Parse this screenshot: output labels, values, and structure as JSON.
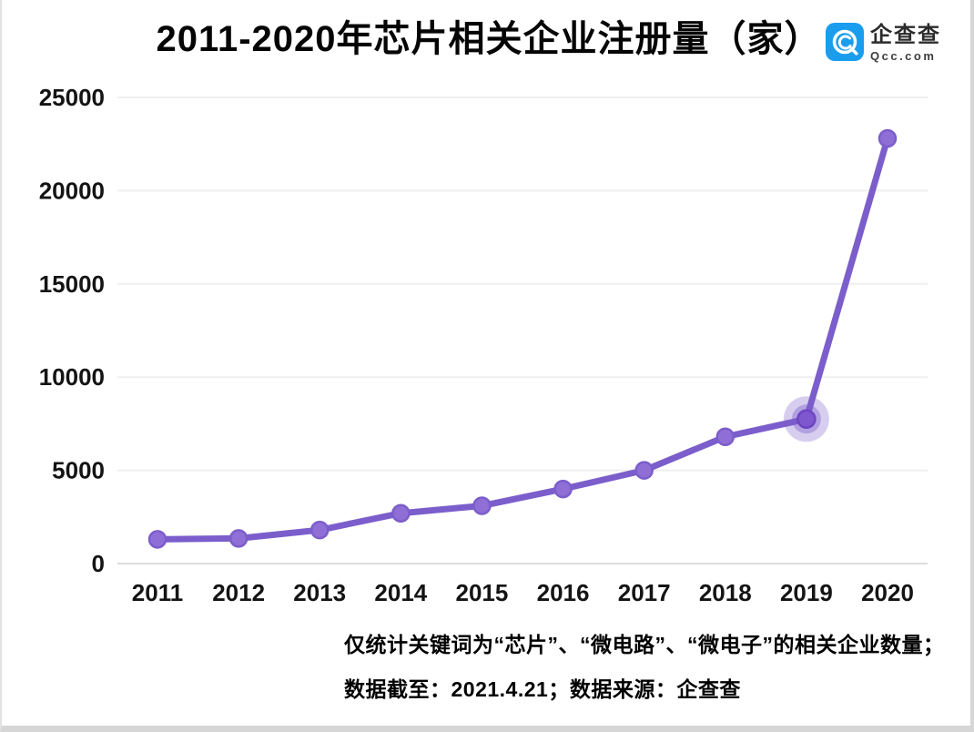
{
  "header": {
    "title": "2011-2020年芯片相关企业注册量（家）"
  },
  "logo": {
    "name": "企查查",
    "domain": "Qcc.com",
    "icon": "qcc-logo-icon",
    "brand_color": "#1B9DEF"
  },
  "chart_data": {
    "type": "line",
    "title": "2011-2020年芯片相关企业注册量（家）",
    "categories": [
      "2011",
      "2012",
      "2013",
      "2014",
      "2015",
      "2016",
      "2017",
      "2018",
      "2019",
      "2020"
    ],
    "values": [
      1300,
      1350,
      1800,
      2700,
      3100,
      4000,
      5000,
      6800,
      7750,
      22800
    ],
    "xlabel": "",
    "ylabel": "",
    "ylim": [
      0,
      25000
    ],
    "yticks": [
      0,
      5000,
      10000,
      15000,
      20000,
      25000
    ],
    "grid": true,
    "legend_position": "none",
    "line_color": "#7B5ECB",
    "marker_fill": "#8F6FD6",
    "emphasis_index": 8,
    "gridline_color": "#efefef",
    "axis_line_color": "#dcdcdc"
  },
  "footer": {
    "note1": "仅统计关键词为“芯片”、“微电路”、“微电子”的相关企业数量；",
    "note2": "数据截至：2021.4.21；数据来源：企查查"
  }
}
